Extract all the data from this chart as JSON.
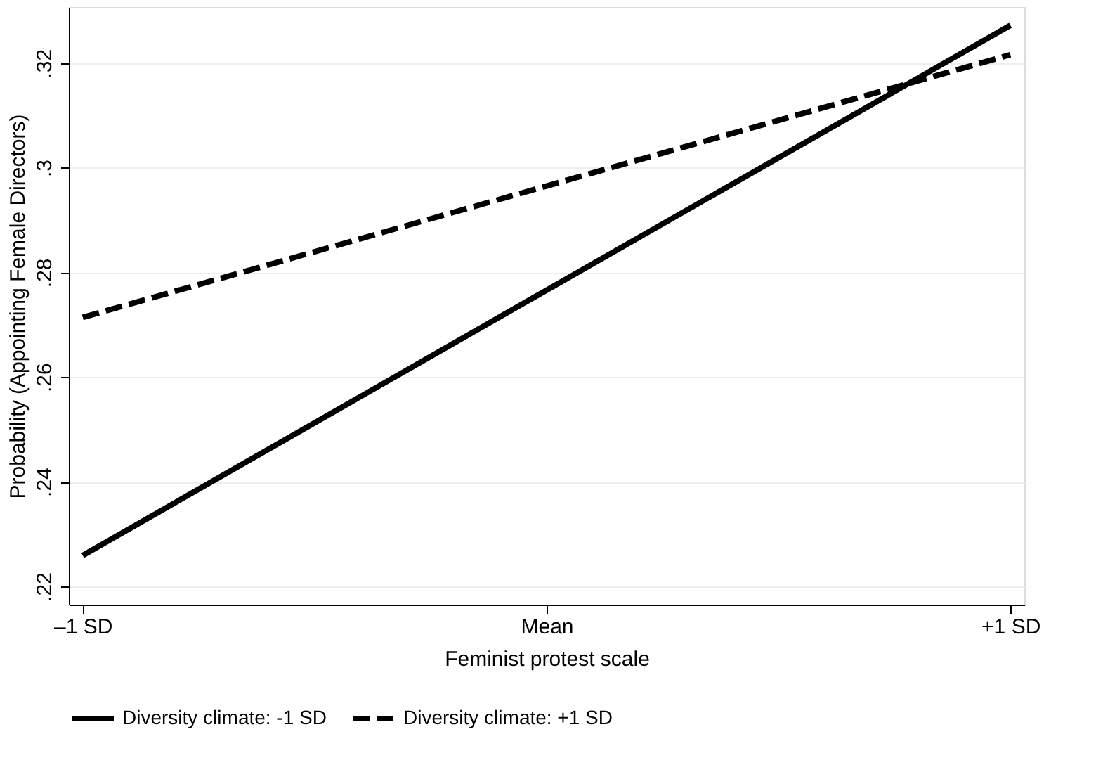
{
  "chart_data": {
    "type": "line",
    "xlabel": "Feminist protest scale",
    "ylabel": "Probability (Appointing Female Directors)",
    "categories": [
      "–1 SD",
      "Mean",
      "+1 SD"
    ],
    "series": [
      {
        "name": "Diversity climate: -1 SD",
        "color": "#000000",
        "line_style": "solid",
        "values": [
          0.2259,
          0.2766,
          0.3272
        ]
      },
      {
        "name": "Diversity climate: +1 SD",
        "color": "#000000",
        "line_style": "dashed",
        "values": [
          0.2714,
          0.2965,
          0.3216
        ]
      }
    ],
    "ylim": [
      0.2165,
      0.3307
    ],
    "yticks": [
      {
        "value": 0.22,
        "label": ".22"
      },
      {
        "value": 0.24,
        "label": ".24"
      },
      {
        "value": 0.26,
        "label": ".26"
      },
      {
        "value": 0.28,
        "label": ".28"
      },
      {
        "value": 0.3,
        "label": ".3"
      },
      {
        "value": 0.32,
        "label": ".32"
      }
    ],
    "grid": "y",
    "legend": "bottom",
    "marker": "none"
  }
}
